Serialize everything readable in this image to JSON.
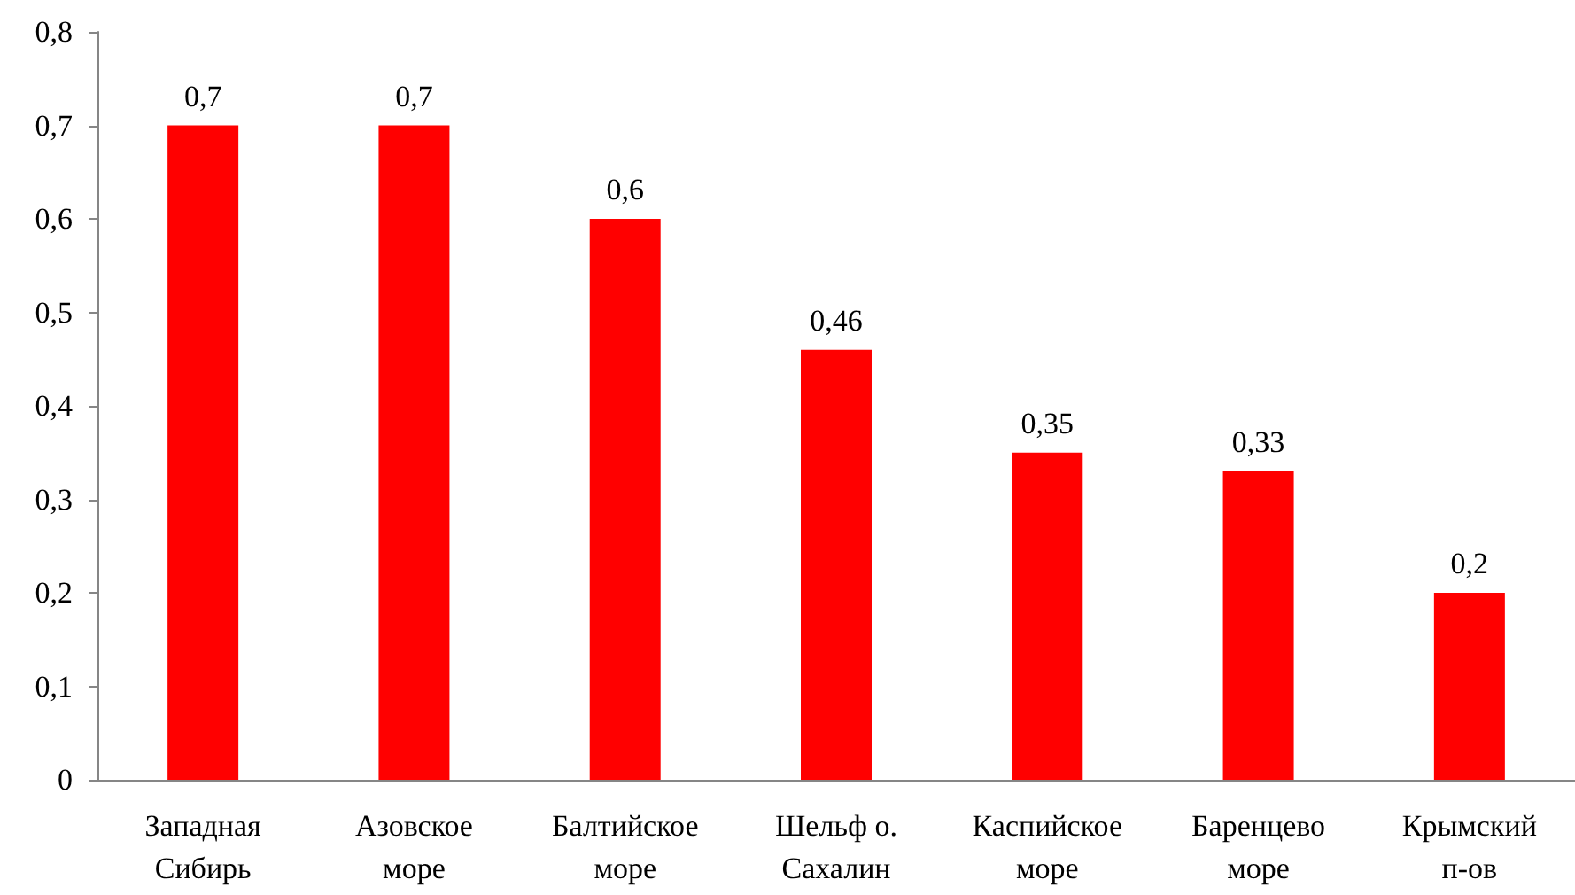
{
  "chart_data": {
    "type": "bar",
    "categories": [
      "Западная Сибирь",
      "Азовское море",
      "Балтийское море",
      "Шельф о. Сахалин",
      "Каспийское море",
      "Баренцево море",
      "Крымский п-ов"
    ],
    "values": [
      0.7,
      0.7,
      0.6,
      0.46,
      0.35,
      0.33,
      0.2
    ],
    "value_labels": [
      "0,7",
      "0,7",
      "0,6",
      "0,46",
      "0,35",
      "0,33",
      "0,2"
    ],
    "color": "#ff0000",
    "ylim": [
      0,
      0.8
    ],
    "yticks": [
      0,
      {
        "value": 0.1,
        "label": "0,1"
      },
      {
        "value": 0.2,
        "label": "0,2"
      },
      {
        "value": 0.3,
        "label": "0,3"
      },
      {
        "value": 0.4,
        "label": "0,4"
      },
      {
        "value": 0.5,
        "label": "0,5"
      },
      {
        "value": 0.6,
        "label": "0,6"
      },
      {
        "value": 0.7,
        "label": "0,7"
      },
      {
        "value": 0.8,
        "label": "0,8"
      }
    ],
    "grid": false
  }
}
